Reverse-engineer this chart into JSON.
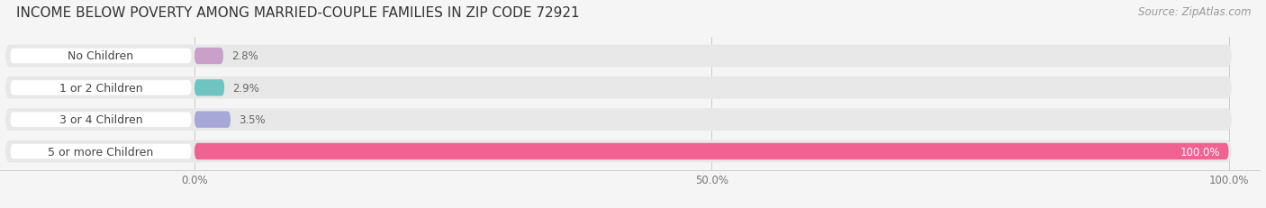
{
  "title": "INCOME BELOW POVERTY AMONG MARRIED-COUPLE FAMILIES IN ZIP CODE 72921",
  "source": "Source: ZipAtlas.com",
  "categories": [
    "No Children",
    "1 or 2 Children",
    "3 or 4 Children",
    "5 or more Children"
  ],
  "values": [
    2.8,
    2.9,
    3.5,
    100.0
  ],
  "bar_colors": [
    "#c9a0c8",
    "#6ec4c1",
    "#a8a8d8",
    "#f06292"
  ],
  "bar_bg_color": "#e8e8e8",
  "label_bg_color": "#ffffff",
  "xtick_labels": [
    "0.0%",
    "50.0%",
    "100.0%"
  ],
  "value_label_color_dark": "#666666",
  "value_label_color_light": "#ffffff",
  "title_fontsize": 11,
  "source_fontsize": 8.5,
  "tick_fontsize": 8.5,
  "bar_label_fontsize": 9,
  "value_fontsize": 8.5,
  "background_color": "#f5f5f5"
}
